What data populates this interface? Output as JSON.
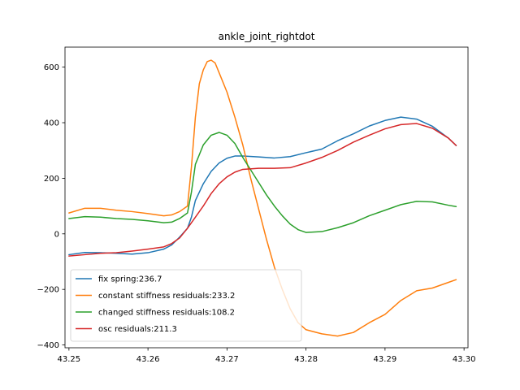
{
  "chart_data": {
    "type": "line",
    "title": "ankle_joint_rightdot",
    "xlabel": "",
    "ylabel": "",
    "xlim": [
      43.2495,
      43.3005
    ],
    "ylim": [
      -410,
      672
    ],
    "x_ticks": [
      43.25,
      43.26,
      43.27,
      43.28,
      43.29,
      43.3
    ],
    "x_tick_labels": [
      "43.25",
      "43.26",
      "43.27",
      "43.28",
      "43.29",
      "43.30"
    ],
    "y_ticks": [
      -400,
      -200,
      0,
      200,
      400,
      600
    ],
    "y_tick_labels": [
      "−400",
      "−200",
      "0",
      "200",
      "400",
      "600"
    ],
    "grid": false,
    "legend": "lower-left",
    "series": [
      {
        "name": "fix spring:236.7",
        "color": "#1f77b4",
        "points": [
          [
            43.25,
            -75
          ],
          [
            43.252,
            -67
          ],
          [
            43.254,
            -68
          ],
          [
            43.256,
            -70
          ],
          [
            43.258,
            -73
          ],
          [
            43.26,
            -68
          ],
          [
            43.262,
            -55
          ],
          [
            43.263,
            -40
          ],
          [
            43.264,
            -12
          ],
          [
            43.265,
            20
          ],
          [
            43.2655,
            60
          ],
          [
            43.266,
            120
          ],
          [
            43.267,
            180
          ],
          [
            43.268,
            225
          ],
          [
            43.269,
            255
          ],
          [
            43.27,
            272
          ],
          [
            43.271,
            280
          ],
          [
            43.272,
            280
          ],
          [
            43.274,
            277
          ],
          [
            43.276,
            273
          ],
          [
            43.278,
            278
          ],
          [
            43.28,
            292
          ],
          [
            43.282,
            305
          ],
          [
            43.284,
            335
          ],
          [
            43.286,
            360
          ],
          [
            43.288,
            388
          ],
          [
            43.29,
            408
          ],
          [
            43.292,
            420
          ],
          [
            43.294,
            413
          ],
          [
            43.296,
            387
          ],
          [
            43.298,
            345
          ],
          [
            43.299,
            318
          ]
        ]
      },
      {
        "name": "constant stiffness residuals:233.2",
        "color": "#ff7f0e",
        "points": [
          [
            43.25,
            75
          ],
          [
            43.252,
            92
          ],
          [
            43.254,
            92
          ],
          [
            43.256,
            85
          ],
          [
            43.258,
            80
          ],
          [
            43.26,
            73
          ],
          [
            43.262,
            65
          ],
          [
            43.263,
            68
          ],
          [
            43.264,
            80
          ],
          [
            43.265,
            100
          ],
          [
            43.2655,
            240
          ],
          [
            43.266,
            420
          ],
          [
            43.2665,
            540
          ],
          [
            43.267,
            590
          ],
          [
            43.2675,
            620
          ],
          [
            43.268,
            625
          ],
          [
            43.2685,
            615
          ],
          [
            43.269,
            580
          ],
          [
            43.27,
            510
          ],
          [
            43.271,
            420
          ],
          [
            43.272,
            320
          ],
          [
            43.273,
            200
          ],
          [
            43.274,
            90
          ],
          [
            43.275,
            -20
          ],
          [
            43.276,
            -120
          ],
          [
            43.277,
            -200
          ],
          [
            43.278,
            -270
          ],
          [
            43.279,
            -320
          ],
          [
            43.28,
            -345
          ],
          [
            43.282,
            -360
          ],
          [
            43.284,
            -368
          ],
          [
            43.286,
            -355
          ],
          [
            43.288,
            -320
          ],
          [
            43.29,
            -290
          ],
          [
            43.292,
            -240
          ],
          [
            43.294,
            -205
          ],
          [
            43.296,
            -195
          ],
          [
            43.298,
            -175
          ],
          [
            43.299,
            -165
          ]
        ]
      },
      {
        "name": "changed stiffness residuals:108.2",
        "color": "#2ca02c",
        "points": [
          [
            43.25,
            55
          ],
          [
            43.252,
            62
          ],
          [
            43.254,
            60
          ],
          [
            43.256,
            55
          ],
          [
            43.258,
            52
          ],
          [
            43.26,
            47
          ],
          [
            43.262,
            40
          ],
          [
            43.263,
            42
          ],
          [
            43.264,
            55
          ],
          [
            43.265,
            75
          ],
          [
            43.2655,
            150
          ],
          [
            43.266,
            250
          ],
          [
            43.267,
            320
          ],
          [
            43.268,
            355
          ],
          [
            43.269,
            365
          ],
          [
            43.27,
            355
          ],
          [
            43.271,
            325
          ],
          [
            43.272,
            275
          ],
          [
            43.273,
            230
          ],
          [
            43.274,
            185
          ],
          [
            43.275,
            140
          ],
          [
            43.276,
            100
          ],
          [
            43.277,
            65
          ],
          [
            43.278,
            35
          ],
          [
            43.279,
            15
          ],
          [
            43.28,
            5
          ],
          [
            43.282,
            8
          ],
          [
            43.284,
            22
          ],
          [
            43.286,
            40
          ],
          [
            43.288,
            65
          ],
          [
            43.29,
            85
          ],
          [
            43.292,
            105
          ],
          [
            43.294,
            117
          ],
          [
            43.296,
            115
          ],
          [
            43.298,
            103
          ],
          [
            43.299,
            98
          ]
        ]
      },
      {
        "name": "osc residuals:211.3",
        "color": "#d62728",
        "points": [
          [
            43.25,
            -80
          ],
          [
            43.252,
            -75
          ],
          [
            43.254,
            -70
          ],
          [
            43.256,
            -68
          ],
          [
            43.258,
            -62
          ],
          [
            43.26,
            -55
          ],
          [
            43.262,
            -47
          ],
          [
            43.263,
            -35
          ],
          [
            43.264,
            -15
          ],
          [
            43.265,
            20
          ],
          [
            43.266,
            60
          ],
          [
            43.267,
            100
          ],
          [
            43.268,
            145
          ],
          [
            43.269,
            180
          ],
          [
            43.27,
            205
          ],
          [
            43.271,
            222
          ],
          [
            43.272,
            232
          ],
          [
            43.274,
            236
          ],
          [
            43.276,
            236
          ],
          [
            43.278,
            238
          ],
          [
            43.28,
            255
          ],
          [
            43.282,
            275
          ],
          [
            43.284,
            300
          ],
          [
            43.286,
            330
          ],
          [
            43.288,
            355
          ],
          [
            43.29,
            378
          ],
          [
            43.292,
            393
          ],
          [
            43.294,
            397
          ],
          [
            43.296,
            380
          ],
          [
            43.298,
            345
          ],
          [
            43.299,
            318
          ]
        ]
      }
    ]
  }
}
